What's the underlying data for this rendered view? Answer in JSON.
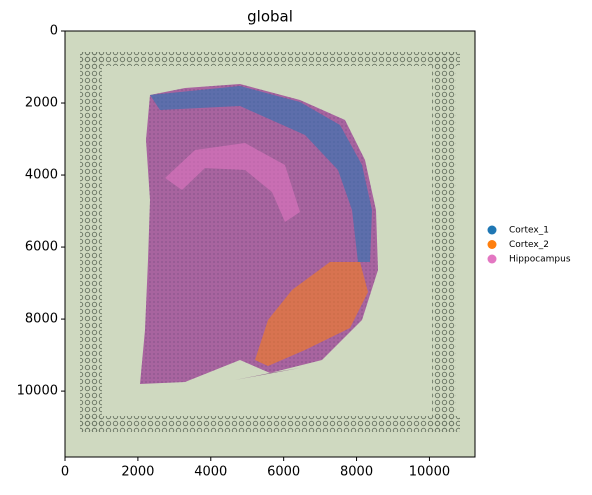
{
  "chart_data": {
    "type": "spatial-scatter",
    "title": "global",
    "xlim": [
      0,
      11250
    ],
    "ylim": [
      11830,
      0
    ],
    "xticks": [
      0,
      2000,
      4000,
      6000,
      8000,
      10000
    ],
    "yticks": [
      0,
      2000,
      4000,
      6000,
      8000,
      10000
    ],
    "series": [
      {
        "name": "Cortex_1",
        "color": "#1f77b4"
      },
      {
        "name": "Cortex_2",
        "color": "#ff7f0e"
      },
      {
        "name": "Hippocampus",
        "color": "#e377c2"
      }
    ]
  }
}
